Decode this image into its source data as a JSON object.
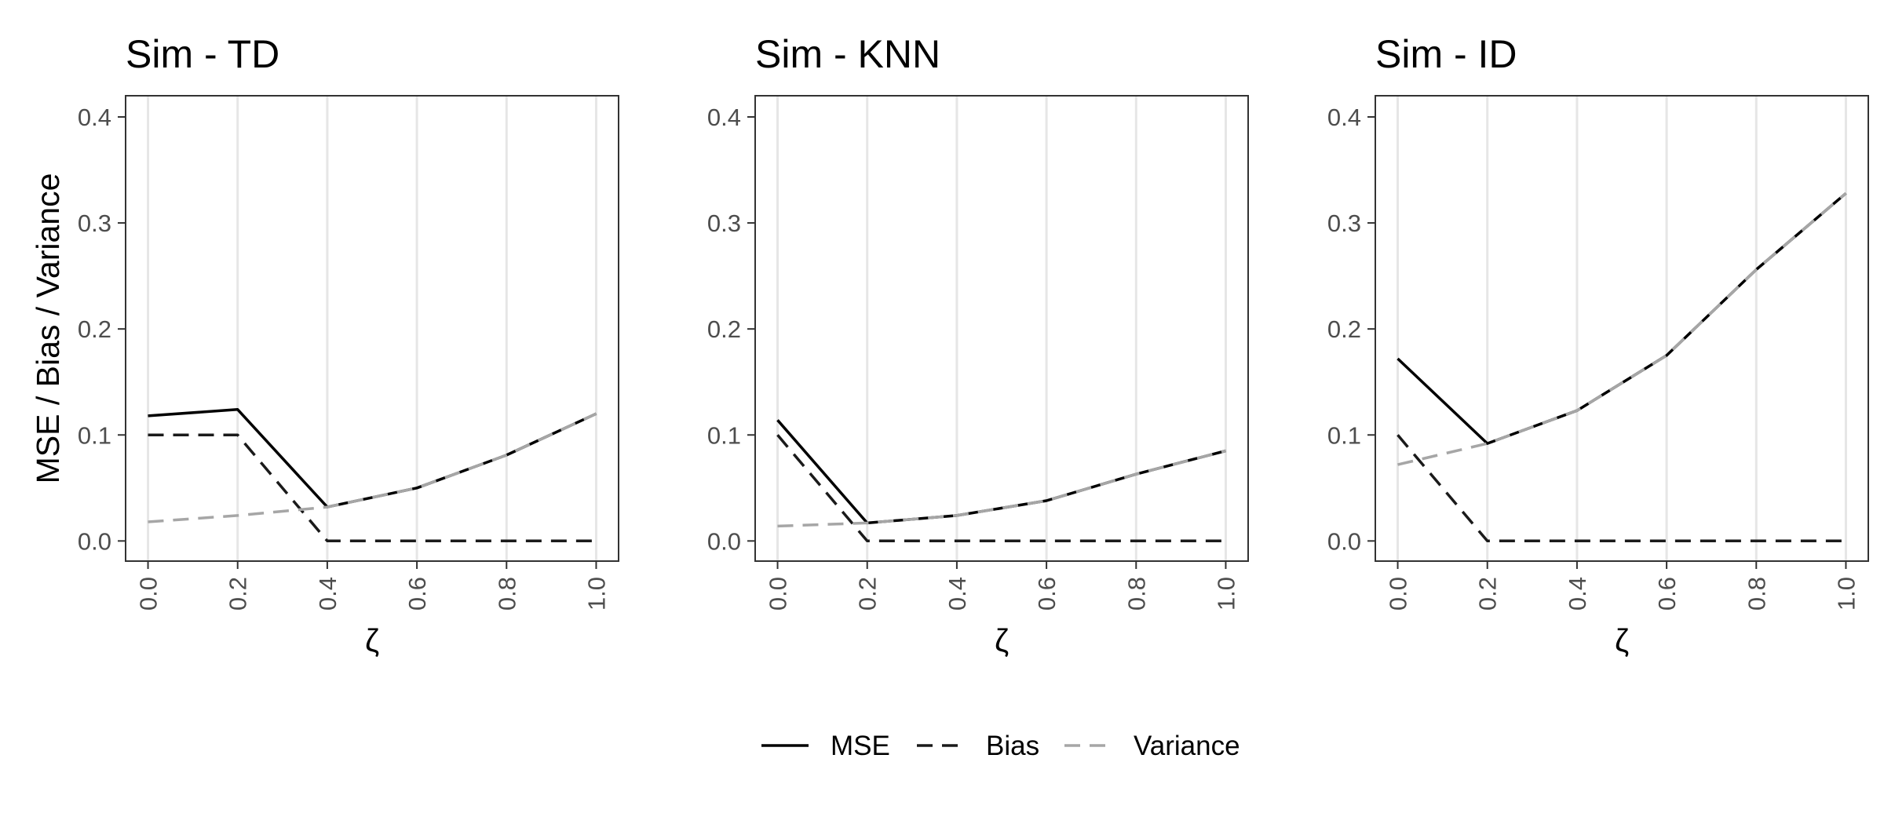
{
  "chart_data": [
    {
      "type": "line",
      "title": "Sim - TD",
      "xlabel": "ζ",
      "ylabel": "MSE / Bias / Variance",
      "x": [
        0.0,
        0.2,
        0.4,
        0.6,
        0.8,
        1.0
      ],
      "x_tick_labels": [
        "0.0",
        "0.2",
        "0.4",
        "0.6",
        "0.8",
        "1.0"
      ],
      "y_tick_labels": [
        "0.0",
        "0.1",
        "0.2",
        "0.3",
        "0.4"
      ],
      "ylim": [
        -0.019,
        0.42
      ],
      "xlim": [
        -0.05,
        1.05
      ],
      "grid": true,
      "series": [
        {
          "name": "MSE",
          "values": [
            0.118,
            0.124,
            0.032,
            0.05,
            0.081,
            0.12
          ]
        },
        {
          "name": "Bias",
          "values": [
            0.1,
            0.1,
            0.0,
            0.0,
            0.0,
            0.0
          ]
        },
        {
          "name": "Variance",
          "values": [
            0.018,
            0.024,
            0.032,
            0.05,
            0.081,
            0.12
          ]
        }
      ]
    },
    {
      "type": "line",
      "title": "Sim - KNN",
      "xlabel": "ζ",
      "ylabel": "",
      "x": [
        0.0,
        0.2,
        0.4,
        0.6,
        0.8,
        1.0
      ],
      "x_tick_labels": [
        "0.0",
        "0.2",
        "0.4",
        "0.6",
        "0.8",
        "1.0"
      ],
      "y_tick_labels": [
        "0.0",
        "0.1",
        "0.2",
        "0.3",
        "0.4"
      ],
      "ylim": [
        -0.019,
        0.42
      ],
      "xlim": [
        -0.05,
        1.05
      ],
      "grid": true,
      "series": [
        {
          "name": "MSE",
          "values": [
            0.114,
            0.017,
            0.024,
            0.038,
            0.063,
            0.085
          ]
        },
        {
          "name": "Bias",
          "values": [
            0.1,
            0.0,
            0.0,
            0.0,
            0.0,
            0.0
          ]
        },
        {
          "name": "Variance",
          "values": [
            0.014,
            0.017,
            0.024,
            0.038,
            0.063,
            0.085
          ]
        }
      ]
    },
    {
      "type": "line",
      "title": "Sim - ID",
      "xlabel": "ζ",
      "ylabel": "",
      "x": [
        0.0,
        0.2,
        0.4,
        0.6,
        0.8,
        1.0
      ],
      "x_tick_labels": [
        "0.0",
        "0.2",
        "0.4",
        "0.6",
        "0.8",
        "1.0"
      ],
      "y_tick_labels": [
        "0.0",
        "0.1",
        "0.2",
        "0.3",
        "0.4"
      ],
      "ylim": [
        -0.019,
        0.42
      ],
      "xlim": [
        -0.05,
        1.05
      ],
      "grid": true,
      "series": [
        {
          "name": "MSE",
          "values": [
            0.172,
            0.092,
            0.123,
            0.175,
            0.256,
            0.328
          ]
        },
        {
          "name": "Bias",
          "values": [
            0.1,
            0.0,
            0.0,
            0.0,
            0.0,
            0.0
          ]
        },
        {
          "name": "Variance",
          "values": [
            0.072,
            0.092,
            0.123,
            0.175,
            0.256,
            0.328
          ]
        }
      ]
    }
  ],
  "legend": {
    "position": "bottom",
    "items": [
      {
        "label": "MSE",
        "color": "#000000",
        "dash": "solid"
      },
      {
        "label": "Bias",
        "color": "#1a1a1a",
        "dash": "dashed"
      },
      {
        "label": "Variance",
        "color": "#a6a6a6",
        "dash": "dashed"
      }
    ]
  },
  "colors": {
    "MSE": "#000000",
    "Bias": "#1a1a1a",
    "Variance": "#a6a6a6",
    "grid": "#e6e6e6",
    "panel_border": "#333333",
    "tick_text": "#4d4d4d"
  }
}
